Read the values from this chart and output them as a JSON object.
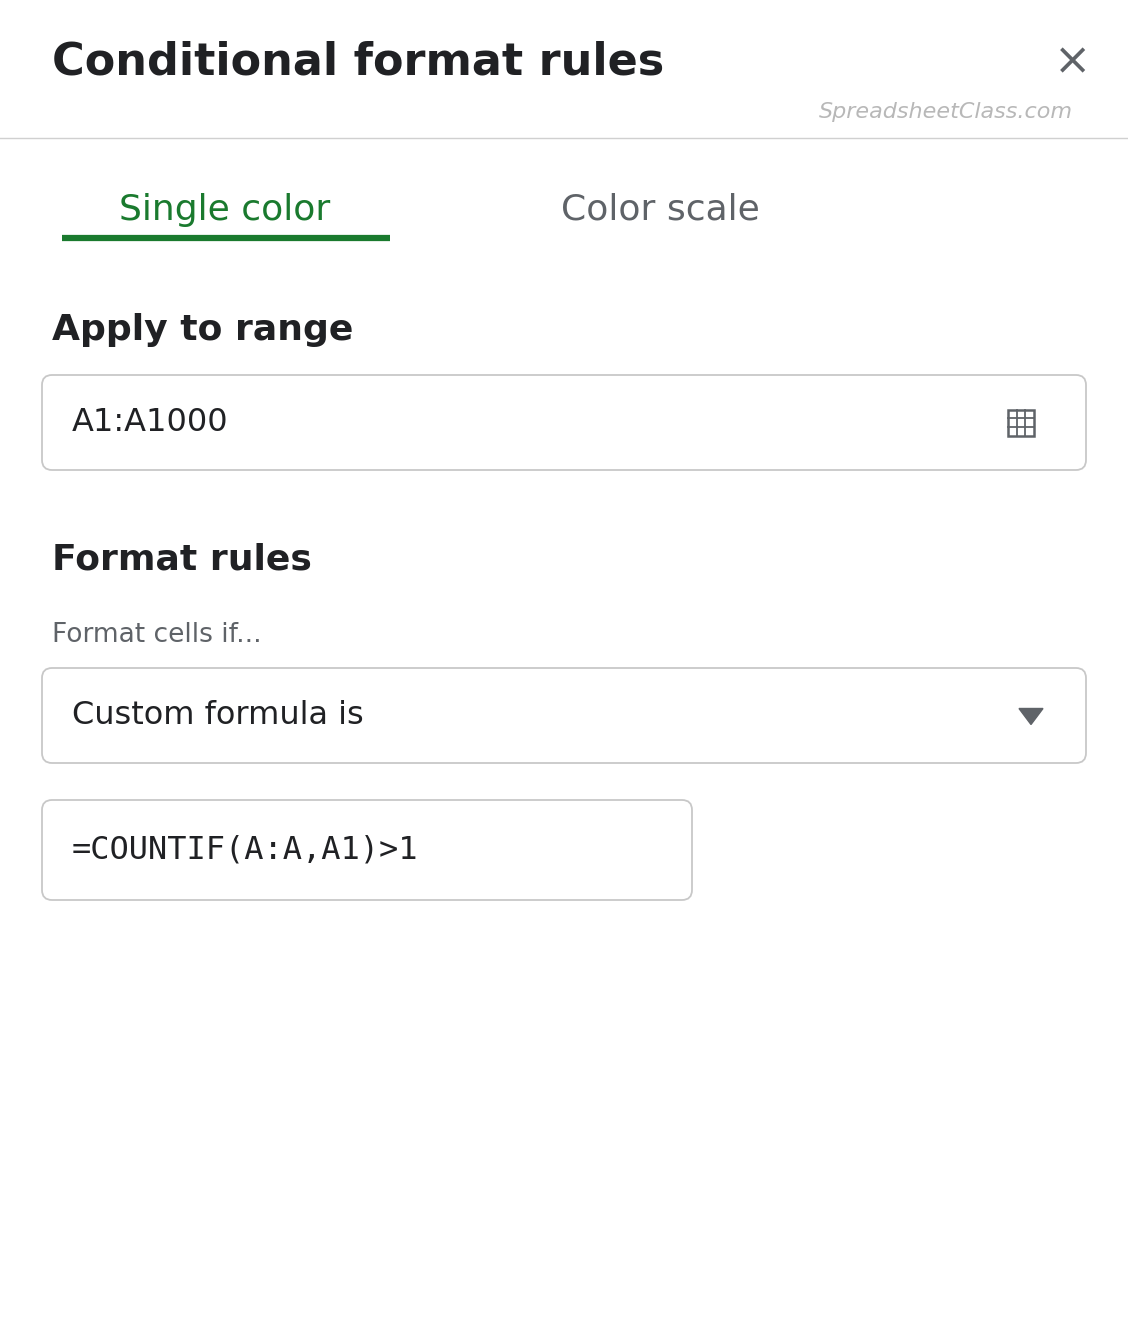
{
  "title": "Conditional format rules",
  "close_x": "×",
  "watermark": "SpreadsheetClass.com",
  "tab1": "Single color",
  "tab2": "Color scale",
  "tab1_color": "#1a7a2e",
  "tab2_color": "#5f6368",
  "underline_color": "#1a7a2e",
  "section1": "Apply to range",
  "range_text": "A1:A1000",
  "section2": "Format rules",
  "label_cells_if": "Format cells if...",
  "dropdown_text": "Custom formula is",
  "formula_text": "=COUNTIF(A:A,A1)>1",
  "bg_color": "#ffffff",
  "border_color": "#c8c8c8",
  "divider_color": "#d0d0d0",
  "text_dark": "#202124",
  "text_gray": "#5f6368",
  "watermark_color": "#b8b8b8",
  "title_fontsize": 32,
  "watermark_fontsize": 16,
  "tab_fontsize": 26,
  "section_fontsize": 26,
  "label_fontsize": 19,
  "range_fontsize": 23,
  "dropdown_fontsize": 23,
  "formula_fontsize": 23,
  "fig_width": 11.28,
  "fig_height": 13.35,
  "dpi": 100
}
